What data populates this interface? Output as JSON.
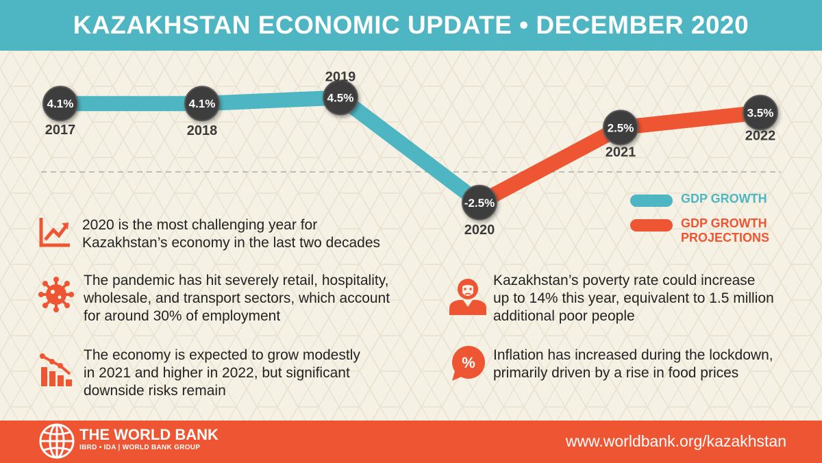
{
  "header": {
    "title": "KAZAKHSTAN ECONOMIC UPDATE  •  DECEMBER 2020"
  },
  "chart_data": {
    "type": "line",
    "x": [
      "2017",
      "2018",
      "2019",
      "2020",
      "2021",
      "2022"
    ],
    "series": [
      {
        "name": "GDP GROWTH",
        "values": [
          4.1,
          4.1,
          4.5,
          -2.5,
          null,
          null
        ],
        "color": "#4eb6c3"
      },
      {
        "name": "GDP GROWTH PROJECTIONS",
        "values": [
          null,
          null,
          null,
          -2.5,
          2.5,
          3.5
        ],
        "color": "#ee5532"
      }
    ],
    "data_labels": [
      "4.1%",
      "4.1%",
      "4.5%",
      "-2.5%",
      "2.5%",
      "3.5%"
    ],
    "legend_position": "right"
  },
  "legend": {
    "gdp": "GDP GROWTH",
    "proj_line1": "GDP GROWTH",
    "proj_line2": "PROJECTIONS"
  },
  "facts": {
    "f1": {
      "line1": "2020 is the most challenging year for",
      "line2": "Kazakhstan’s economy in the last two decades"
    },
    "f2": {
      "line1": "The pandemic has hit severely retail, hospitality,",
      "line2": "wholesale, and transport sectors, which account",
      "line3": "for around 30% of employment"
    },
    "f3": {
      "line1": "The economy is expected to grow modestly",
      "line2": "in 2021 and higher in 2022, but significant",
      "line3": "downside risks remain"
    },
    "f4": {
      "line1": "Kazakhstan’s poverty rate could increase",
      "line2": "up to 14% this year, equivalent to 1.5 million",
      "line3": "additional poor people"
    },
    "f5": {
      "line1": "Inflation has increased during the lockdown,",
      "line2": "primarily driven by a rise in food prices"
    }
  },
  "icons": {
    "f1": "growth-chart-icon",
    "f2": "virus-icon",
    "f3": "decline-chart-icon",
    "f4": "person-icon",
    "f5": "percent-bubble-icon",
    "percent_glyph": "%"
  },
  "footer": {
    "org": "THE WORLD BANK",
    "org_sub": "IBRD • IDA | WORLD BANK GROUP",
    "url": "www.worldbank.org/kazakhstan"
  },
  "colors": {
    "teal": "#4eb6c3",
    "orange": "#ee5532",
    "background": "#f6f1e5",
    "circle": "#3d3d3d"
  }
}
